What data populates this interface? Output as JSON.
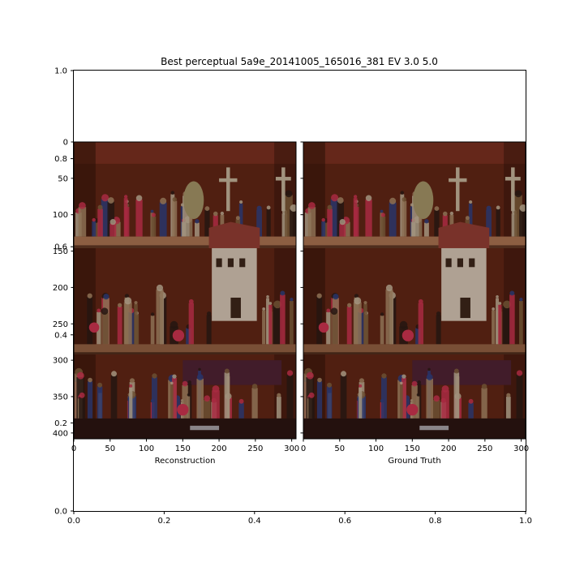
{
  "chart_data": [
    {
      "type": "other",
      "role": "background-axes",
      "title": "Best perceptual 5a9e_20141005_165016_381 EV 3.0 5.0",
      "xlim": [
        0.0,
        1.0
      ],
      "ylim": [
        0.0,
        1.0
      ],
      "x_ticks": [
        0.0,
        0.2,
        0.4,
        0.6,
        0.8,
        1.0
      ],
      "x_tick_labels": [
        "0.0",
        "0.2",
        "0.4",
        "0.6",
        "0.8",
        "1.0"
      ],
      "y_ticks": [
        0.0,
        0.2,
        0.4,
        0.6,
        0.8,
        1.0
      ],
      "y_tick_labels": [
        "0.0",
        "0.2",
        "0.4",
        "0.6",
        "0.8",
        "1.0"
      ]
    },
    {
      "type": "image",
      "role": "reconstruction",
      "xlabel": "Reconstruction",
      "xlim": [
        0,
        306
      ],
      "ylim": [
        408,
        0
      ],
      "x_ticks": [
        0,
        50,
        100,
        150,
        200,
        250,
        300
      ],
      "x_tick_labels": [
        "0",
        "50",
        "100",
        "150",
        "200",
        "250",
        "300"
      ],
      "y_ticks": [
        0,
        50,
        100,
        150,
        200,
        250,
        300,
        350,
        400
      ],
      "y_tick_labels": [
        "0",
        "50",
        "100",
        "150",
        "200",
        "250",
        "300",
        "350",
        "400"
      ]
    },
    {
      "type": "image",
      "role": "ground-truth",
      "xlabel": "Ground Truth",
      "xlim": [
        0,
        306
      ],
      "ylim": [
        408,
        0
      ],
      "x_ticks": [
        0,
        50,
        100,
        150,
        200,
        250,
        300
      ],
      "x_tick_labels": [
        "0",
        "50",
        "100",
        "150",
        "200",
        "250",
        "300"
      ],
      "y_ticks": [
        0,
        50,
        100,
        150,
        200,
        250,
        300,
        350,
        400
      ],
      "y_tick_labels": []
    }
  ],
  "colors": {
    "wall": "#6a2a18",
    "wall_dark": "#3a160c",
    "shelf": "#a06c4c",
    "roof": "#8a3a30",
    "house": "#c8b8a8",
    "figurine_red": "#c0304a",
    "figurine_blue": "#2e3c78",
    "figurine_pale": "#b8a890",
    "figurine_dark": "#2a1a14"
  }
}
